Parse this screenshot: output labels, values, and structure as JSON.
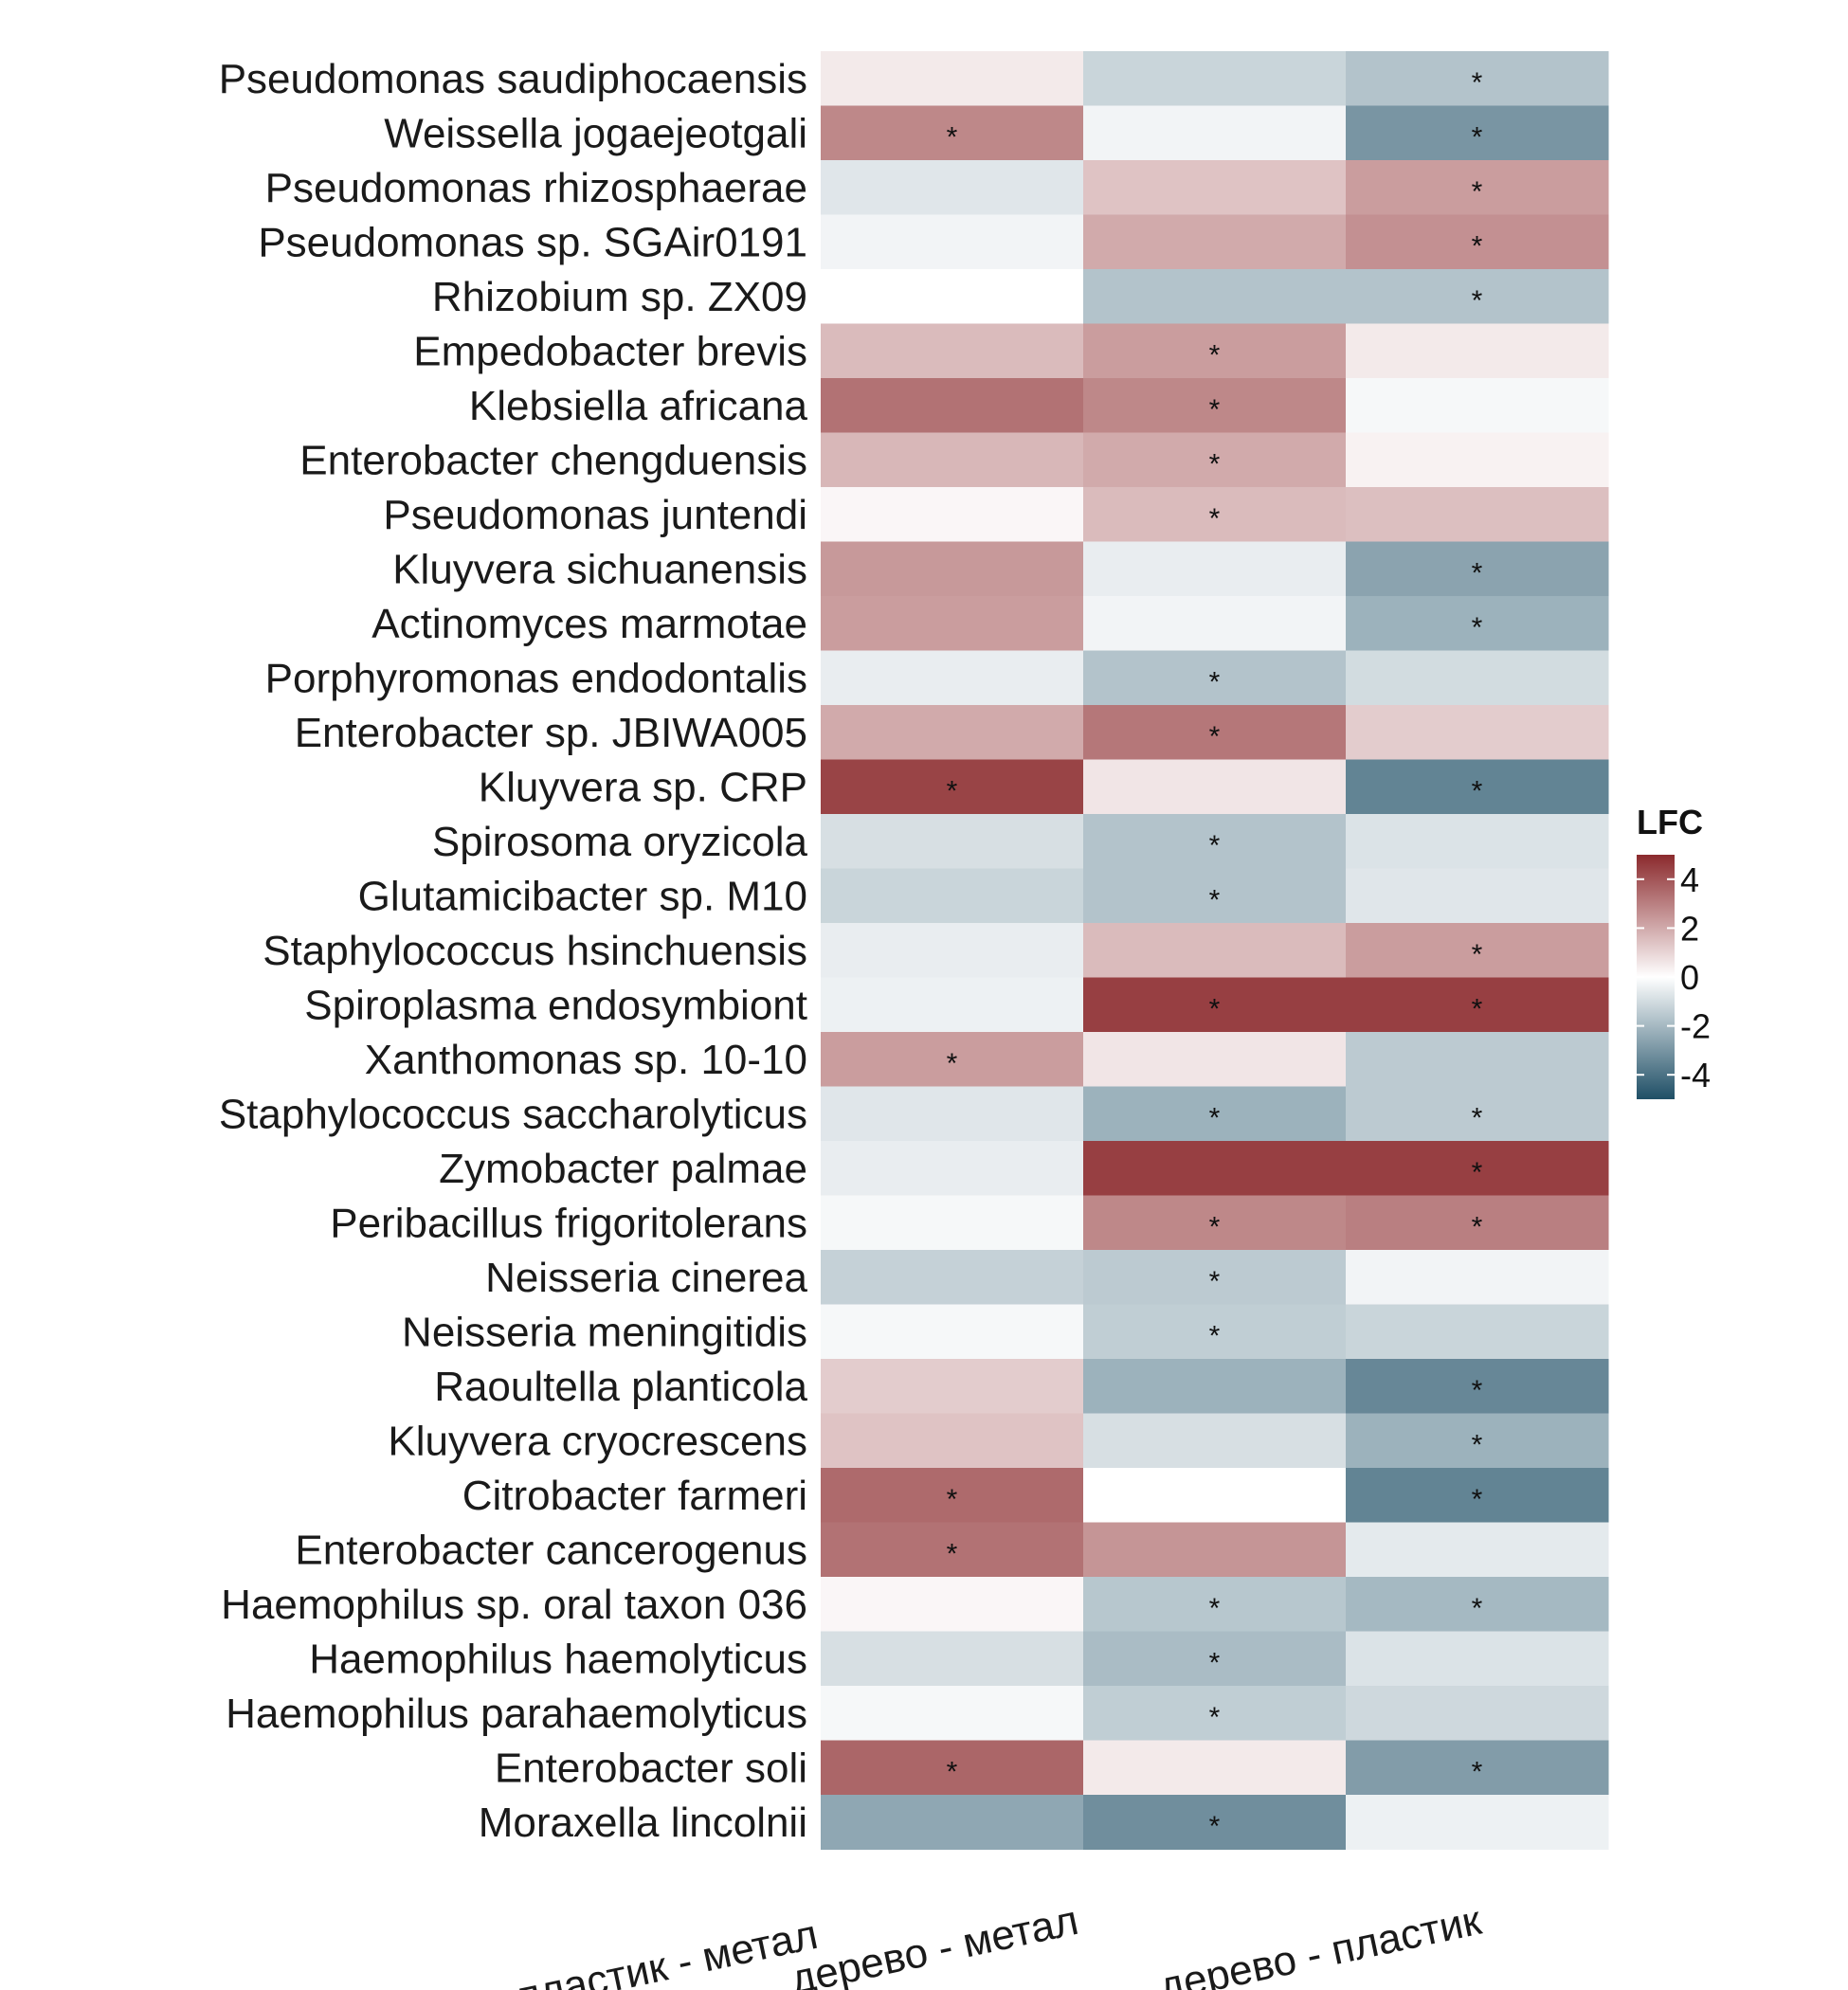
{
  "chart_data": {
    "type": "heatmap",
    "legend": {
      "title": "LFC",
      "ticks": [
        4,
        2,
        0,
        -2,
        -4
      ],
      "tick_labels": [
        "4",
        "2",
        "0",
        "-2",
        "-4"
      ],
      "range": [
        -5,
        5
      ],
      "placement": "right"
    },
    "colors": {
      "high": "#8b2a2d",
      "mid": "#ffffff",
      "low": "#1f4f66"
    },
    "columns": [
      "пластик - метал",
      "дерево - метал",
      "дерево - пластик"
    ],
    "rows": [
      "Pseudomonas saudiphocaensis",
      "Weissella jogaejeotgali",
      "Pseudomonas rhizosphaerae",
      "Pseudomonas sp. SGAir0191",
      "Rhizobium sp. ZX09",
      "Empedobacter brevis",
      "Klebsiella africana",
      "Enterobacter chengduensis",
      "Pseudomonas juntendi",
      "Kluyvera sichuanensis",
      "Actinomyces marmotae",
      "Porphyromonas endodontalis",
      "Enterobacter sp. JBIWA005",
      "Kluyvera sp. CRP",
      "Spirosoma oryzicola",
      "Glutamicibacter sp. M10",
      "Staphylococcus hsinchuensis",
      "Spiroplasma endosymbiont",
      "Xanthomonas sp. 10-10",
      "Staphylococcus saccharolyticus",
      "Zymobacter palmae",
      "Peribacillus frigoritolerans",
      "Neisseria cinerea",
      "Neisseria meningitidis",
      "Raoultella planticola",
      "Kluyvera cryocrescens",
      "Citrobacter farmeri",
      "Enterobacter cancerogenus",
      "Haemophilus sp. oral taxon 036",
      "Haemophilus haemolyticus",
      "Haemophilus parahaemolyticus",
      "Enterobacter soli",
      "Moraxella lincolnii"
    ],
    "values": [
      [
        0.5,
        -1.2,
        -1.7
      ],
      [
        2.8,
        -0.3,
        -3.0
      ],
      [
        -0.7,
        1.4,
        2.3
      ],
      [
        -0.3,
        2.0,
        2.6
      ],
      [
        0.0,
        -1.7,
        -1.7
      ],
      [
        1.6,
        2.3,
        0.5
      ],
      [
        3.3,
        2.8,
        -0.2
      ],
      [
        1.7,
        2.0,
        0.3
      ],
      [
        0.2,
        1.6,
        1.5
      ],
      [
        2.4,
        -0.5,
        -2.6
      ],
      [
        2.3,
        -0.3,
        -2.2
      ],
      [
        -0.5,
        -1.7,
        -1.0
      ],
      [
        2.0,
        3.2,
        1.2
      ],
      [
        4.4,
        0.6,
        -3.5
      ],
      [
        -0.9,
        -1.7,
        -0.8
      ],
      [
        -1.2,
        -1.7,
        -0.7
      ],
      [
        -0.5,
        1.6,
        2.3
      ],
      [
        -0.4,
        4.5,
        4.5
      ],
      [
        2.3,
        0.6,
        -1.5
      ],
      [
        -0.7,
        -2.2,
        -1.5
      ],
      [
        -0.5,
        4.5,
        4.5
      ],
      [
        -0.2,
        2.8,
        3.0
      ],
      [
        -1.3,
        -1.5,
        -0.3
      ],
      [
        -0.2,
        -1.4,
        -1.2
      ],
      [
        1.2,
        -2.2,
        -3.4
      ],
      [
        1.4,
        -0.9,
        -2.2
      ],
      [
        3.5,
        0.0,
        -3.5
      ],
      [
        3.3,
        2.5,
        -0.6
      ],
      [
        0.2,
        -1.6,
        -2.0
      ],
      [
        -0.9,
        -1.9,
        -0.8
      ],
      [
        -0.2,
        -1.4,
        -1.1
      ],
      [
        3.6,
        0.5,
        -2.8
      ],
      [
        -2.5,
        -3.2,
        -0.4
      ]
    ],
    "significant": [
      [
        false,
        false,
        true
      ],
      [
        true,
        false,
        true
      ],
      [
        false,
        false,
        true
      ],
      [
        false,
        false,
        true
      ],
      [
        false,
        false,
        true
      ],
      [
        false,
        true,
        false
      ],
      [
        false,
        true,
        false
      ],
      [
        false,
        true,
        false
      ],
      [
        false,
        true,
        false
      ],
      [
        false,
        false,
        true
      ],
      [
        false,
        false,
        true
      ],
      [
        false,
        true,
        false
      ],
      [
        false,
        true,
        false
      ],
      [
        true,
        false,
        true
      ],
      [
        false,
        true,
        false
      ],
      [
        false,
        true,
        false
      ],
      [
        false,
        false,
        true
      ],
      [
        false,
        true,
        true
      ],
      [
        true,
        false,
        false
      ],
      [
        false,
        true,
        true
      ],
      [
        false,
        false,
        true
      ],
      [
        false,
        true,
        true
      ],
      [
        false,
        true,
        false
      ],
      [
        false,
        true,
        false
      ],
      [
        false,
        false,
        true
      ],
      [
        false,
        false,
        true
      ],
      [
        true,
        false,
        true
      ],
      [
        true,
        false,
        false
      ],
      [
        false,
        true,
        true
      ],
      [
        false,
        true,
        false
      ],
      [
        false,
        true,
        false
      ],
      [
        true,
        false,
        true
      ],
      [
        false,
        true,
        false
      ]
    ],
    "marker": "*"
  }
}
